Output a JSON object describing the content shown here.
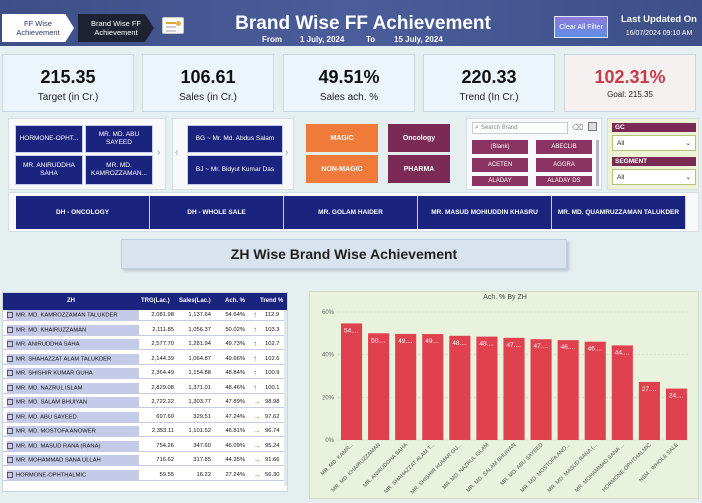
{
  "header": {
    "nav_tabs": [
      {
        "label": "FF Wise Achievement"
      },
      {
        "label": "Brand Wise FF Achievement"
      }
    ],
    "title": "Brand Wise FF Achievement",
    "from_label": "From",
    "from_date": "1 July, 2024",
    "to_label": "To",
    "to_date": "15 July, 2024",
    "clear_button": "Clear All Filter",
    "updated_label": "Last Updated On",
    "updated_value": "16/07/2024 09:10 AM"
  },
  "kpis": {
    "target": {
      "value": "215.35",
      "label": "Target (in Cr.)"
    },
    "sales": {
      "value": "106.61",
      "label": "Sales (in Cr.)"
    },
    "ach": {
      "value": "49.51%",
      "label": "Sales ach. %"
    },
    "trend": {
      "value": "220.33",
      "label": "Trend (In Cr.)"
    },
    "goal": {
      "value": "102.31%",
      "label": "Goal: 215.35"
    }
  },
  "slicers": {
    "zone_buttons": [
      "HORMONE-OPHT...",
      "MR. MD. ABU SAYEED",
      "MR. ANIRUDDHA SAHA",
      "MR. MD. KAMROZZAMAN..."
    ],
    "bg_buttons": [
      "BG ~ Mr. Md. Abdus Salam",
      "BJ ~ Mr. Bidyut Kumar Das"
    ],
    "magic_buttons": [
      "MAGIC",
      "NON-MAGIC"
    ],
    "category_buttons": [
      "Oncology",
      "PHARMA"
    ],
    "search_placeholder": "Search Brand",
    "brands": [
      "(Blank)",
      "ABECLIB",
      "ACETEN",
      "AGGRA",
      "ALADAY",
      "ALADAY DS"
    ],
    "gc_label": "GC",
    "gc_value": "All",
    "segment_label": "SEGMENT",
    "segment_value": "All"
  },
  "dh_buttons": [
    "DH - ONCOLOGY",
    "DH - WHOLE SALE",
    "MR. GOLAM HAIDER",
    "MR. MASUD MOHIUDDIN KHASRU",
    "MR. MD. QUAMRUZZAMAN TALUKDER"
  ],
  "section_title": "ZH Wise Brand Wise Achievement",
  "table": {
    "headers": {
      "zh": "ZH",
      "trg": "TRG(Lac.)",
      "sales": "Sales(Lac.)",
      "ach": "Ach. %",
      "trend": "Trend %"
    },
    "rows": [
      {
        "zh": "MR. MD. KAMROZZAMAN TALUKDER",
        "trg": "2,081.98",
        "sales": "1,137.64",
        "ach": "54.64%",
        "arrow": "up",
        "trend": "112.9"
      },
      {
        "zh": "MR. MD. KHAIRUZZAMAN",
        "trg": "2,111.85",
        "sales": "1,056.37",
        "ach": "50.02%",
        "arrow": "up",
        "trend": "103.3"
      },
      {
        "zh": "MR. ANIRUDDHA SAHA",
        "trg": "2,577.70",
        "sales": "1,281.94",
        "ach": "49.73%",
        "arrow": "up",
        "trend": "102.7"
      },
      {
        "zh": "MR. SHAHAZZAT ALAM TALUKDER",
        "trg": "2,144.39",
        "sales": "1,064.87",
        "ach": "49.66%",
        "arrow": "up",
        "trend": "102.6"
      },
      {
        "zh": "MR. SHISHIR KUMAR GUHA",
        "trg": "2,364.49",
        "sales": "1,154.88",
        "ach": "48.84%",
        "arrow": "up",
        "trend": "100.9"
      },
      {
        "zh": "MR. MD. NAZRUL ISLAM",
        "trg": "2,829.08",
        "sales": "1,371.01",
        "ach": "48.46%",
        "arrow": "up",
        "trend": "100.1"
      },
      {
        "zh": "MR. MD. SALAM BHUIYAN",
        "trg": "2,722.22",
        "sales": "1,303.77",
        "ach": "47.89%",
        "arrow": "right",
        "trend": "98.98"
      },
      {
        "zh": "MR. MD. ABU SAYEED",
        "trg": "697.60",
        "sales": "329.51",
        "ach": "47.24%",
        "arrow": "right",
        "trend": "97.62"
      },
      {
        "zh": "MR. MD. MOSTOFA ANOWER",
        "trg": "2,353.11",
        "sales": "1,101.52",
        "ach": "46.81%",
        "arrow": "right",
        "trend": "96.74"
      },
      {
        "zh": "MR. MD. MASUD RANA (RANA)",
        "trg": "754.26",
        "sales": "347.60",
        "ach": "46.09%",
        "arrow": "right",
        "trend": "95.24"
      },
      {
        "zh": "MR. MOHAMMAD SANA ULLAH",
        "trg": "716.62",
        "sales": "317.85",
        "ach": "44.35%",
        "arrow": "right",
        "trend": "91.66"
      },
      {
        "zh": "HORMONE-OPHTHALMIC",
        "trg": "59.55",
        "sales": "16.22",
        "ach": "27.24%",
        "arrow": "right",
        "trend": "56.30"
      }
    ]
  },
  "chart_data": {
    "type": "bar",
    "title": "Ach. % By ZH",
    "categories": [
      "MR. MD. KAMR...",
      "MR. MD. KHAIRUZZAMAN",
      "MR. ANIRUDDHA SAHA",
      "MR. SHAHAZZAT ALAM T...",
      "MR. SHISHIR KUMAR GU...",
      "MR. MD. NAZRUL ISLAM",
      "MR. MD. SALAM BHUIYAN",
      "MR. MD. ABU SAYEED",
      "MR. MD. MOSTOFA ANO...",
      "MR. MD. MASUD RANA (...",
      "MR. MOHAMMAD SANA ...",
      "HORMONE-OPHTHALMIC",
      "NSM - WHOLE SALE"
    ],
    "values": [
      54.64,
      50.02,
      49.73,
      49.66,
      48.84,
      48.46,
      47.89,
      47.24,
      46.81,
      46.09,
      44.35,
      27.24,
      24.1
    ],
    "data_labels": [
      "54....",
      "50....",
      "49....",
      "49....",
      "48....",
      "48....",
      "47....",
      "47....",
      "46....",
      "46....",
      "44....",
      "27....",
      "24...."
    ],
    "y_ticks": [
      "0%",
      "20%",
      "40%",
      "60%"
    ],
    "ylim": [
      0,
      60
    ],
    "bar_color": "#e0414f",
    "grid": true
  }
}
